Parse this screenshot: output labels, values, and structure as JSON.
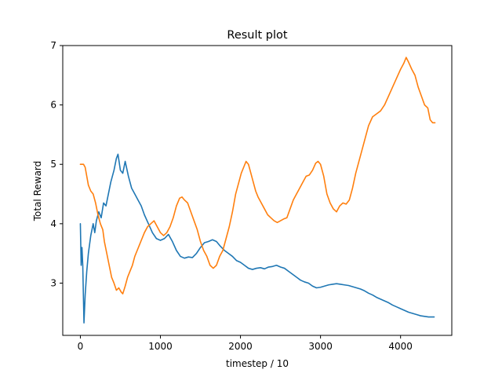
{
  "chart_data": {
    "type": "line",
    "title": "Result plot",
    "xlabel": "timestep / 10",
    "ylabel": "Total Reward",
    "xlim": [
      -220,
      4640
    ],
    "ylim": [
      2.12,
      7.0
    ],
    "xticks": [
      0,
      1000,
      2000,
      3000,
      4000
    ],
    "yticks": [
      3,
      4,
      5,
      6,
      7
    ],
    "grid": false,
    "legend": "none",
    "series": [
      {
        "color": "#1f77b4",
        "points": [
          [
            0,
            4.0
          ],
          [
            10,
            3.3
          ],
          [
            20,
            3.6
          ],
          [
            30,
            3.3
          ],
          [
            45,
            2.33
          ],
          [
            60,
            2.8
          ],
          [
            80,
            3.2
          ],
          [
            100,
            3.5
          ],
          [
            130,
            3.8
          ],
          [
            160,
            4.0
          ],
          [
            180,
            3.85
          ],
          [
            200,
            4.05
          ],
          [
            230,
            4.2
          ],
          [
            260,
            4.1
          ],
          [
            290,
            4.35
          ],
          [
            320,
            4.3
          ],
          [
            350,
            4.5
          ],
          [
            380,
            4.7
          ],
          [
            420,
            4.9
          ],
          [
            450,
            5.1
          ],
          [
            470,
            5.17
          ],
          [
            500,
            4.9
          ],
          [
            530,
            4.85
          ],
          [
            560,
            5.05
          ],
          [
            600,
            4.8
          ],
          [
            640,
            4.6
          ],
          [
            680,
            4.5
          ],
          [
            720,
            4.4
          ],
          [
            760,
            4.3
          ],
          [
            800,
            4.15
          ],
          [
            850,
            4.0
          ],
          [
            900,
            3.85
          ],
          [
            950,
            3.75
          ],
          [
            1000,
            3.72
          ],
          [
            1050,
            3.75
          ],
          [
            1100,
            3.82
          ],
          [
            1150,
            3.7
          ],
          [
            1200,
            3.55
          ],
          [
            1250,
            3.45
          ],
          [
            1300,
            3.42
          ],
          [
            1350,
            3.44
          ],
          [
            1400,
            3.43
          ],
          [
            1450,
            3.5
          ],
          [
            1500,
            3.6
          ],
          [
            1550,
            3.68
          ],
          [
            1600,
            3.7
          ],
          [
            1650,
            3.73
          ],
          [
            1700,
            3.7
          ],
          [
            1750,
            3.62
          ],
          [
            1800,
            3.55
          ],
          [
            1850,
            3.5
          ],
          [
            1900,
            3.45
          ],
          [
            1950,
            3.38
          ],
          [
            2000,
            3.35
          ],
          [
            2050,
            3.3
          ],
          [
            2100,
            3.25
          ],
          [
            2150,
            3.23
          ],
          [
            2200,
            3.25
          ],
          [
            2250,
            3.26
          ],
          [
            2300,
            3.24
          ],
          [
            2350,
            3.27
          ],
          [
            2400,
            3.28
          ],
          [
            2450,
            3.3
          ],
          [
            2500,
            3.27
          ],
          [
            2550,
            3.25
          ],
          [
            2600,
            3.2
          ],
          [
            2650,
            3.15
          ],
          [
            2700,
            3.1
          ],
          [
            2750,
            3.05
          ],
          [
            2800,
            3.02
          ],
          [
            2850,
            3.0
          ],
          [
            2900,
            2.95
          ],
          [
            2950,
            2.92
          ],
          [
            3000,
            2.93
          ],
          [
            3050,
            2.95
          ],
          [
            3100,
            2.97
          ],
          [
            3150,
            2.98
          ],
          [
            3200,
            2.99
          ],
          [
            3250,
            2.98
          ],
          [
            3300,
            2.97
          ],
          [
            3350,
            2.96
          ],
          [
            3400,
            2.94
          ],
          [
            3450,
            2.92
          ],
          [
            3500,
            2.9
          ],
          [
            3550,
            2.87
          ],
          [
            3600,
            2.83
          ],
          [
            3650,
            2.8
          ],
          [
            3700,
            2.76
          ],
          [
            3750,
            2.73
          ],
          [
            3800,
            2.7
          ],
          [
            3850,
            2.67
          ],
          [
            3900,
            2.63
          ],
          [
            3950,
            2.6
          ],
          [
            4000,
            2.57
          ],
          [
            4050,
            2.54
          ],
          [
            4100,
            2.51
          ],
          [
            4150,
            2.49
          ],
          [
            4200,
            2.47
          ],
          [
            4250,
            2.45
          ],
          [
            4300,
            2.44
          ],
          [
            4350,
            2.43
          ],
          [
            4420,
            2.43
          ]
        ]
      },
      {
        "color": "#ff7f0e",
        "points": [
          [
            0,
            5.0
          ],
          [
            40,
            5.0
          ],
          [
            60,
            4.95
          ],
          [
            80,
            4.8
          ],
          [
            100,
            4.65
          ],
          [
            130,
            4.55
          ],
          [
            160,
            4.5
          ],
          [
            190,
            4.35
          ],
          [
            220,
            4.15
          ],
          [
            250,
            4.0
          ],
          [
            280,
            3.9
          ],
          [
            300,
            3.7
          ],
          [
            330,
            3.5
          ],
          [
            360,
            3.3
          ],
          [
            390,
            3.1
          ],
          [
            420,
            3.0
          ],
          [
            450,
            2.88
          ],
          [
            480,
            2.92
          ],
          [
            510,
            2.85
          ],
          [
            530,
            2.82
          ],
          [
            560,
            2.95
          ],
          [
            590,
            3.1
          ],
          [
            620,
            3.2
          ],
          [
            650,
            3.3
          ],
          [
            680,
            3.45
          ],
          [
            710,
            3.55
          ],
          [
            740,
            3.65
          ],
          [
            770,
            3.75
          ],
          [
            800,
            3.85
          ],
          [
            840,
            3.95
          ],
          [
            880,
            4.0
          ],
          [
            920,
            4.05
          ],
          [
            960,
            3.95
          ],
          [
            1000,
            3.85
          ],
          [
            1040,
            3.8
          ],
          [
            1080,
            3.85
          ],
          [
            1120,
            3.95
          ],
          [
            1160,
            4.1
          ],
          [
            1200,
            4.3
          ],
          [
            1240,
            4.43
          ],
          [
            1270,
            4.45
          ],
          [
            1300,
            4.4
          ],
          [
            1340,
            4.35
          ],
          [
            1380,
            4.2
          ],
          [
            1420,
            4.05
          ],
          [
            1460,
            3.9
          ],
          [
            1500,
            3.7
          ],
          [
            1540,
            3.55
          ],
          [
            1580,
            3.45
          ],
          [
            1620,
            3.3
          ],
          [
            1660,
            3.25
          ],
          [
            1700,
            3.3
          ],
          [
            1740,
            3.45
          ],
          [
            1780,
            3.55
          ],
          [
            1820,
            3.75
          ],
          [
            1860,
            3.95
          ],
          [
            1900,
            4.2
          ],
          [
            1940,
            4.5
          ],
          [
            1980,
            4.7
          ],
          [
            2010,
            4.85
          ],
          [
            2040,
            4.95
          ],
          [
            2070,
            5.05
          ],
          [
            2100,
            5.0
          ],
          [
            2130,
            4.85
          ],
          [
            2160,
            4.7
          ],
          [
            2190,
            4.55
          ],
          [
            2220,
            4.45
          ],
          [
            2260,
            4.35
          ],
          [
            2300,
            4.25
          ],
          [
            2340,
            4.15
          ],
          [
            2380,
            4.1
          ],
          [
            2420,
            4.05
          ],
          [
            2460,
            4.02
          ],
          [
            2500,
            4.05
          ],
          [
            2540,
            4.08
          ],
          [
            2580,
            4.1
          ],
          [
            2620,
            4.25
          ],
          [
            2660,
            4.4
          ],
          [
            2700,
            4.5
          ],
          [
            2740,
            4.6
          ],
          [
            2780,
            4.7
          ],
          [
            2820,
            4.8
          ],
          [
            2860,
            4.82
          ],
          [
            2900,
            4.9
          ],
          [
            2940,
            5.02
          ],
          [
            2970,
            5.05
          ],
          [
            3000,
            5.0
          ],
          [
            3040,
            4.8
          ],
          [
            3080,
            4.5
          ],
          [
            3120,
            4.35
          ],
          [
            3160,
            4.25
          ],
          [
            3200,
            4.2
          ],
          [
            3240,
            4.3
          ],
          [
            3280,
            4.35
          ],
          [
            3320,
            4.33
          ],
          [
            3360,
            4.4
          ],
          [
            3400,
            4.6
          ],
          [
            3440,
            4.85
          ],
          [
            3480,
            5.05
          ],
          [
            3520,
            5.25
          ],
          [
            3560,
            5.45
          ],
          [
            3600,
            5.65
          ],
          [
            3650,
            5.8
          ],
          [
            3700,
            5.85
          ],
          [
            3750,
            5.9
          ],
          [
            3800,
            6.0
          ],
          [
            3850,
            6.15
          ],
          [
            3900,
            6.3
          ],
          [
            3950,
            6.45
          ],
          [
            4000,
            6.6
          ],
          [
            4040,
            6.7
          ],
          [
            4070,
            6.8
          ],
          [
            4100,
            6.72
          ],
          [
            4140,
            6.6
          ],
          [
            4180,
            6.5
          ],
          [
            4220,
            6.3
          ],
          [
            4260,
            6.15
          ],
          [
            4300,
            6.0
          ],
          [
            4340,
            5.95
          ],
          [
            4370,
            5.75
          ],
          [
            4400,
            5.7
          ],
          [
            4430,
            5.7
          ]
        ]
      }
    ]
  }
}
